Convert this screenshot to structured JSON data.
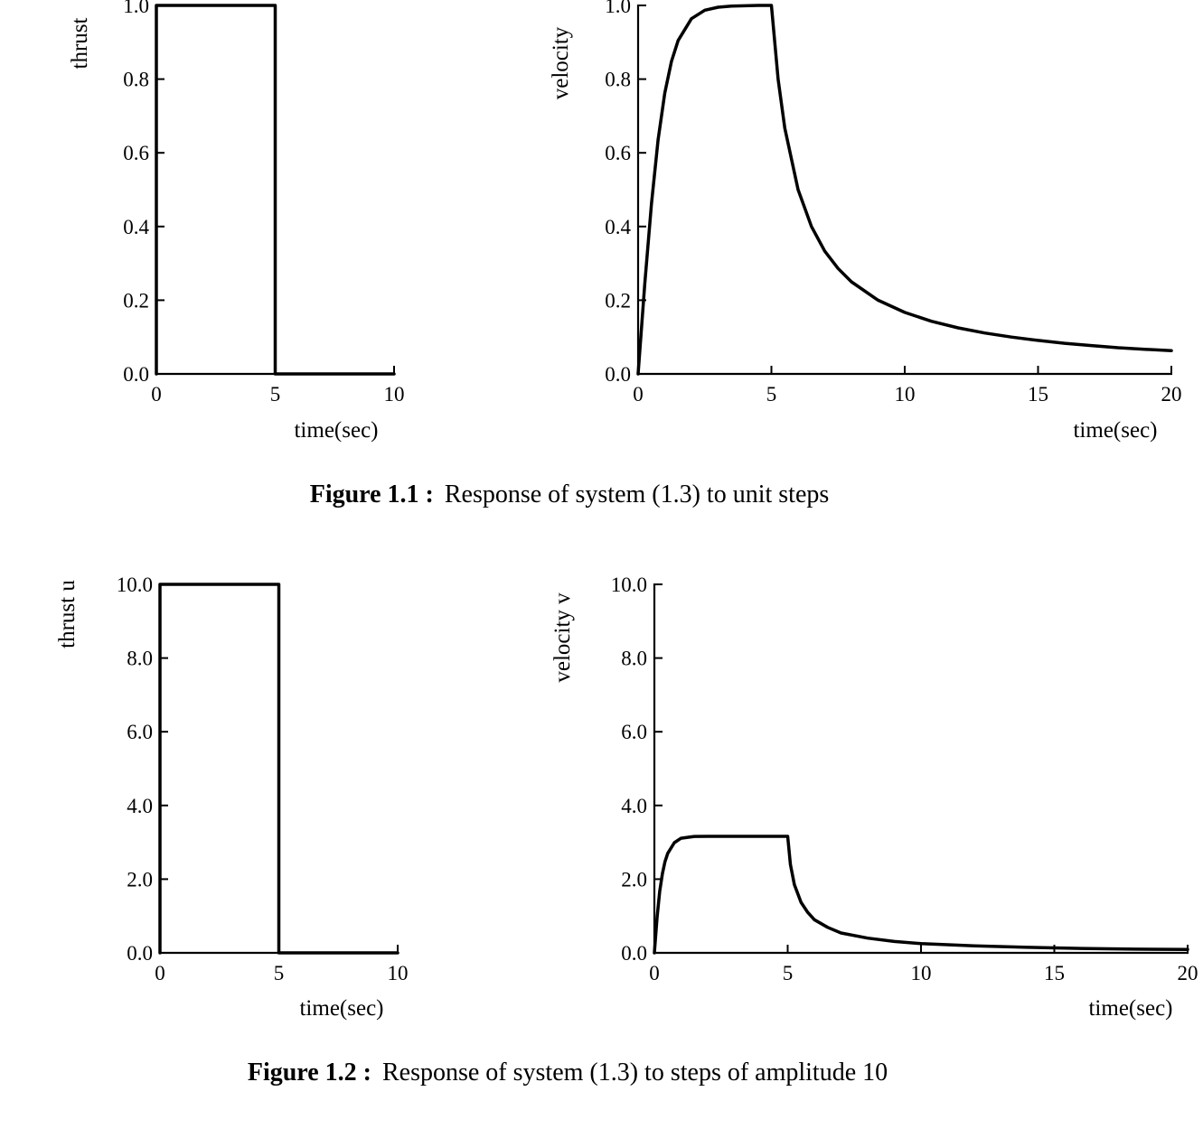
{
  "figures": [
    {
      "label": "Figure 1.1 :",
      "caption": "Response of system (1.3) to unit steps"
    },
    {
      "label": "Figure 1.2 :",
      "caption": "Response of system (1.3) to steps of amplitude 10"
    }
  ],
  "chart_data": [
    {
      "type": "line",
      "id": "fig11-thrust",
      "xlabel": "time(sec)",
      "ylabel": "thrust",
      "xlim": [
        0,
        10
      ],
      "ylim": [
        0,
        1
      ],
      "xticks": [
        "0",
        "5",
        "10"
      ],
      "yticks": [
        "0.0",
        "0.2",
        "0.4",
        "0.6",
        "0.8",
        "1.0"
      ],
      "series": [
        {
          "x": [
            0,
            0,
            5,
            5,
            10
          ],
          "y": [
            0,
            1,
            1,
            0,
            0
          ]
        }
      ]
    },
    {
      "type": "line",
      "id": "fig11-velocity",
      "xlabel": "time(sec)",
      "ylabel": "velocity",
      "xlim": [
        0,
        20
      ],
      "ylim": [
        0,
        1
      ],
      "xticks": [
        "0",
        "5",
        "10",
        "15",
        "20"
      ],
      "yticks": [
        "0.0",
        "0.2",
        "0.4",
        "0.6",
        "0.8",
        "1.0"
      ],
      "series": [
        {
          "x": [
            0,
            0.25,
            0.5,
            0.75,
            1,
            1.25,
            1.5,
            2,
            2.5,
            3,
            3.5,
            4,
            4.5,
            5,
            5.25,
            5.5,
            6,
            6.5,
            7,
            7.5,
            8,
            9,
            10,
            11,
            12,
            13,
            14,
            15,
            16,
            17,
            18,
            19,
            20
          ],
          "y": [
            0,
            0.245,
            0.462,
            0.635,
            0.762,
            0.848,
            0.905,
            0.964,
            0.987,
            0.995,
            0.998,
            0.999,
            1.0,
            1.0,
            0.8,
            0.667,
            0.5,
            0.4,
            0.333,
            0.286,
            0.25,
            0.2,
            0.167,
            0.143,
            0.125,
            0.111,
            0.1,
            0.091,
            0.083,
            0.077,
            0.071,
            0.067,
            0.063
          ]
        }
      ]
    },
    {
      "type": "line",
      "id": "fig12-thrust",
      "xlabel": "time(sec)",
      "ylabel": "thrust  u",
      "xlim": [
        0,
        10
      ],
      "ylim": [
        0,
        10
      ],
      "xticks": [
        "0",
        "5",
        "10"
      ],
      "yticks": [
        "0.0",
        "2.0",
        "4.0",
        "6.0",
        "8.0",
        "10.0"
      ],
      "series": [
        {
          "x": [
            0,
            0,
            5,
            5,
            10
          ],
          "y": [
            0,
            10,
            10,
            0,
            0
          ]
        }
      ]
    },
    {
      "type": "line",
      "id": "fig12-velocity",
      "xlabel": "time(sec)",
      "ylabel": "velocity  v",
      "xlim": [
        0,
        20
      ],
      "ylim": [
        0,
        10
      ],
      "xticks": [
        "0",
        "5",
        "10",
        "15",
        "20"
      ],
      "yticks": [
        "0.0",
        "2.0",
        "4.0",
        "6.0",
        "8.0",
        "10.0"
      ],
      "series": [
        {
          "x": [
            0,
            0.1,
            0.2,
            0.3,
            0.4,
            0.5,
            0.75,
            1,
            1.5,
            2,
            3,
            4,
            5,
            5.1,
            5.25,
            5.5,
            5.75,
            6,
            6.5,
            7,
            8,
            9,
            10,
            12,
            14,
            16,
            18,
            20
          ],
          "y": [
            0,
            0.96,
            1.67,
            2.15,
            2.48,
            2.7,
            2.99,
            3.11,
            3.16,
            3.162,
            3.162,
            3.162,
            3.162,
            2.4,
            1.85,
            1.37,
            1.1,
            0.9,
            0.69,
            0.54,
            0.4,
            0.31,
            0.25,
            0.19,
            0.15,
            0.12,
            0.1,
            0.09
          ]
        }
      ]
    }
  ]
}
